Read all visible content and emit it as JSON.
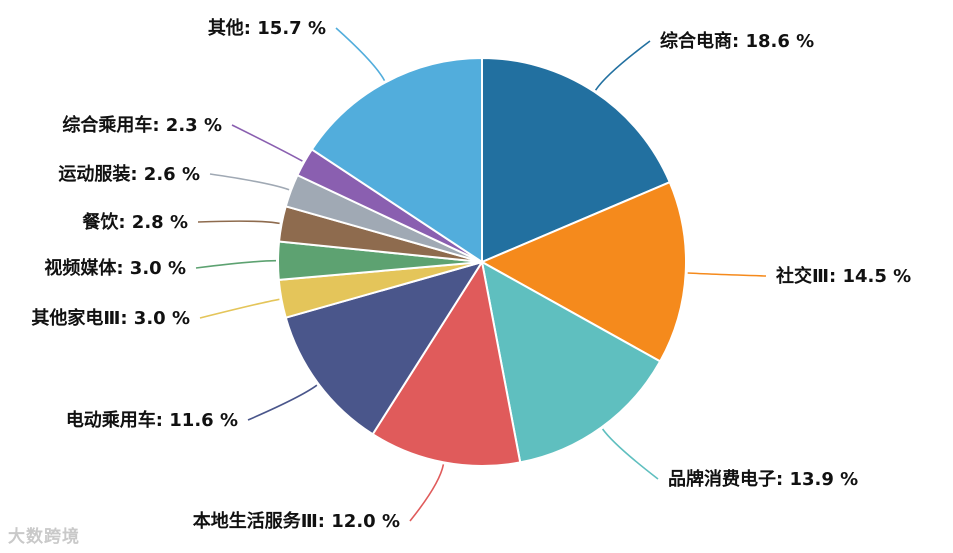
{
  "chart_data": {
    "type": "pie",
    "slices": [
      {
        "label": "综合电商",
        "value": 18.6,
        "display": "18.6 %",
        "color": "#2270a0"
      },
      {
        "label": "社交Ⅲ",
        "value": 14.5,
        "display": "14.5 %",
        "color": "#f58a1c"
      },
      {
        "label": "品牌消费电子",
        "value": 13.9,
        "display": "13.9 %",
        "color": "#5fbfbf"
      },
      {
        "label": "本地生活服务Ⅲ",
        "value": 12.0,
        "display": "12.0 %",
        "color": "#e05b5b"
      },
      {
        "label": "电动乘用车",
        "value": 11.6,
        "display": "11.6 %",
        "color": "#4a568b"
      },
      {
        "label": "其他家电Ⅲ",
        "value": 3.0,
        "display": "3.0 %",
        "color": "#e4c55a"
      },
      {
        "label": "视频媒体",
        "value": 3.0,
        "display": "3.0 %",
        "color": "#5da271"
      },
      {
        "label": "餐饮",
        "value": 2.8,
        "display": "2.8 %",
        "color": "#8e6b4e"
      },
      {
        "label": "运动服装",
        "value": 2.6,
        "display": "2.6 %",
        "color": "#a0a9b4"
      },
      {
        "label": "综合乘用车",
        "value": 2.3,
        "display": "2.3 %",
        "color": "#8a5fb0"
      },
      {
        "label": "其他",
        "value": 15.7,
        "display": "15.7 %",
        "color": "#52addc"
      }
    ]
  },
  "watermark": "大数跨境"
}
